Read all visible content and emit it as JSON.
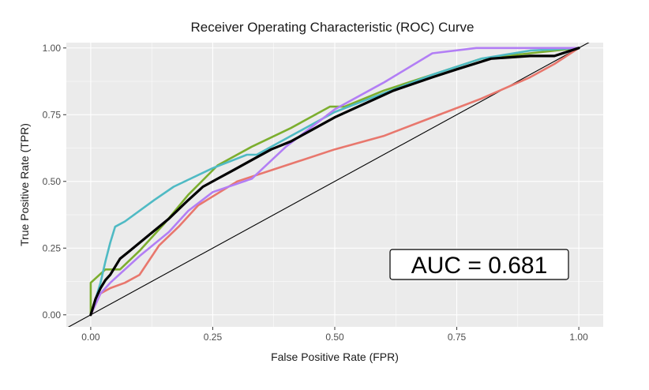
{
  "chart_data": {
    "type": "line",
    "title": "Receiver Operating Characteristic (ROC) Curve",
    "xlabel": "False Positive Rate (FPR)",
    "ylabel": "True Positive Rate (TPR)",
    "xlim": [
      -0.05,
      1.05
    ],
    "ylim": [
      -0.045,
      1.02
    ],
    "x_ticks": [
      0,
      0.25,
      0.5,
      0.75,
      1
    ],
    "x_tick_labels": [
      "0.00",
      "0.25",
      "0.50",
      "0.75",
      "1.00"
    ],
    "y_ticks": [
      0,
      0.25,
      0.5,
      0.75,
      1
    ],
    "y_tick_labels": [
      "0.00",
      "0.25",
      "0.50",
      "0.75",
      "1.00"
    ],
    "grid": true,
    "legend": "none",
    "annotation": "AUC = 0.681",
    "series": [
      {
        "color": "#e8776d",
        "x": [
          0,
          0.02,
          0.04,
          0.07,
          0.1,
          0.14,
          0.18,
          0.22,
          0.3,
          0.4,
          0.5,
          0.6,
          0.7,
          0.8,
          0.9,
          0.95,
          1
        ],
        "y": [
          0,
          0.08,
          0.1,
          0.12,
          0.15,
          0.26,
          0.33,
          0.41,
          0.5,
          0.56,
          0.62,
          0.67,
          0.74,
          0.81,
          0.89,
          0.94,
          1
        ]
      },
      {
        "color": "#7cae2e",
        "x": [
          0,
          0,
          0.03,
          0.06,
          0.1,
          0.15,
          0.2,
          0.26,
          0.33,
          0.41,
          0.49,
          0.52,
          0.6,
          0.7,
          0.8,
          0.9,
          1
        ],
        "y": [
          0,
          0.12,
          0.17,
          0.17,
          0.24,
          0.34,
          0.45,
          0.56,
          0.63,
          0.7,
          0.78,
          0.78,
          0.84,
          0.9,
          0.96,
          0.98,
          1
        ]
      },
      {
        "color": "#4fbac4",
        "x": [
          0,
          0.02,
          0.03,
          0.04,
          0.05,
          0.07,
          0.13,
          0.17,
          0.25,
          0.32,
          0.34,
          0.42,
          0.5,
          0.6,
          0.7,
          0.8,
          0.9,
          1
        ],
        "y": [
          0,
          0.12,
          0.2,
          0.27,
          0.33,
          0.35,
          0.43,
          0.48,
          0.55,
          0.6,
          0.6,
          0.68,
          0.76,
          0.83,
          0.9,
          0.96,
          0.99,
          1
        ]
      },
      {
        "color": "#b27ef5",
        "x": [
          0,
          0.02,
          0.04,
          0.1,
          0.16,
          0.2,
          0.25,
          0.33,
          0.4,
          0.5,
          0.6,
          0.7,
          0.79,
          0.9,
          1
        ],
        "y": [
          0,
          0.08,
          0.12,
          0.22,
          0.31,
          0.39,
          0.46,
          0.51,
          0.63,
          0.77,
          0.87,
          0.98,
          1,
          1,
          1
        ]
      },
      {
        "color": "#000000",
        "x": [
          0,
          0.01,
          0.02,
          0.03,
          0.04,
          0.05,
          0.06,
          0.08,
          0.12,
          0.16,
          0.2,
          0.23,
          0.26,
          0.29,
          0.33,
          0.37,
          0.41,
          0.46,
          0.5,
          0.56,
          0.62,
          0.7,
          0.75,
          0.82,
          0.9,
          0.95,
          1
        ],
        "y": [
          0,
          0.06,
          0.1,
          0.13,
          0.15,
          0.18,
          0.21,
          0.24,
          0.3,
          0.36,
          0.43,
          0.48,
          0.51,
          0.54,
          0.58,
          0.62,
          0.65,
          0.7,
          0.74,
          0.79,
          0.84,
          0.89,
          0.92,
          0.96,
          0.97,
          0.97,
          1
        ]
      }
    ],
    "reference_line": {
      "color": "#000000",
      "x": [
        -0.05,
        1.05
      ],
      "y": [
        -0.05,
        1.05
      ]
    }
  }
}
